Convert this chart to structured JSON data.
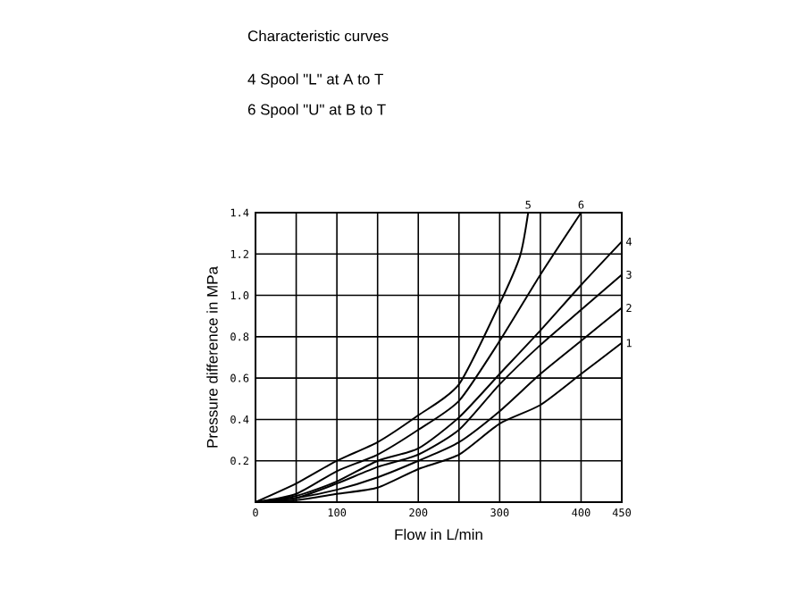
{
  "chart_data": {
    "type": "line",
    "title": "Characteristic curves",
    "annotations": [
      "4 Spool \"L\" at  A to T",
      "6 Spool \"U\" at  B to T"
    ],
    "xlabel": "Flow in L/min",
    "ylabel": "Pressure difference in MPa",
    "xlim": [
      0,
      450
    ],
    "ylim": [
      0,
      1.4
    ],
    "xticks": [
      0,
      {
        "value": 50,
        "label": null
      },
      100,
      {
        "value": 150,
        "label": null
      },
      200,
      {
        "value": 250,
        "label": null
      },
      300,
      {
        "value": 350,
        "label": null
      },
      400,
      450
    ],
    "yticks": [
      {
        "value": 0,
        "label": null
      },
      0.2,
      0.4,
      0.6,
      0.8,
      {
        "value": 1.0,
        "label": "1.0"
      },
      1.2,
      1.4
    ],
    "grid": true,
    "legend": false,
    "marker": "none",
    "line_style": "solid",
    "series": [
      {
        "name": "1",
        "color": "#000000",
        "x": [
          0,
          50,
          100,
          150,
          200,
          250,
          300,
          350,
          400,
          450
        ],
        "values": [
          0,
          0.01,
          0.04,
          0.07,
          0.16,
          0.23,
          0.38,
          0.47,
          0.62,
          0.77
        ]
      },
      {
        "name": "2",
        "color": "#000000",
        "x": [
          0,
          50,
          100,
          150,
          200,
          250,
          300,
          350,
          400,
          450
        ],
        "values": [
          0,
          0.02,
          0.06,
          0.12,
          0.2,
          0.29,
          0.44,
          0.62,
          0.78,
          0.94
        ]
      },
      {
        "name": "3",
        "color": "#000000",
        "x": [
          0,
          50,
          100,
          150,
          200,
          250,
          300,
          350,
          400,
          450
        ],
        "values": [
          0,
          0.02,
          0.09,
          0.17,
          0.23,
          0.35,
          0.57,
          0.76,
          0.93,
          1.1
        ]
      },
      {
        "name": "4",
        "color": "#000000",
        "x": [
          0,
          50,
          100,
          150,
          200,
          250,
          300,
          350,
          400,
          450
        ],
        "values": [
          0,
          0.03,
          0.1,
          0.2,
          0.26,
          0.41,
          0.62,
          0.83,
          1.05,
          1.26
        ]
      },
      {
        "name": "5",
        "color": "#000000",
        "x": [
          0,
          50,
          100,
          150,
          200,
          250,
          300,
          325,
          335
        ],
        "values": [
          0,
          0.09,
          0.2,
          0.29,
          0.42,
          0.57,
          0.96,
          1.19,
          1.4
        ]
      },
      {
        "name": "6",
        "color": "#000000",
        "x": [
          0,
          50,
          100,
          150,
          200,
          250,
          300,
          350,
          400
        ],
        "values": [
          0,
          0.04,
          0.15,
          0.23,
          0.35,
          0.49,
          0.78,
          1.1,
          1.4
        ]
      }
    ]
  }
}
